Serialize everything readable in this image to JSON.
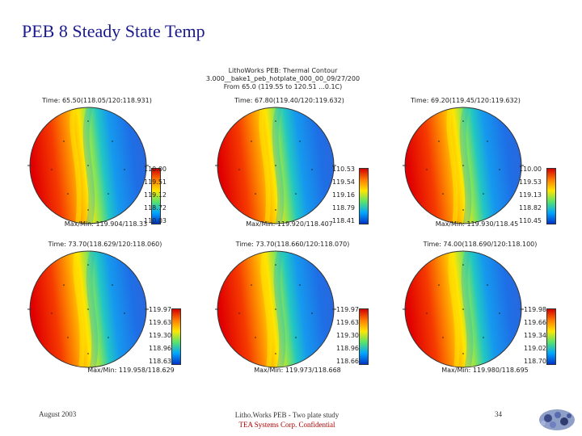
{
  "slide": {
    "title": "PEB 8 Steady State Temp",
    "header_lines": [
      "LithoWorks PEB: Thermal Contour",
      "3.000__bake1_peb_hotplate_000_00_09/27/200",
      "From 65.0 (119.55 to 120.51 ...0.1C)"
    ],
    "footer": {
      "date": "August 2003",
      "center_line1": "Litho.Works PEB - Two plate study",
      "center_line2": "TEA Systems Corp. Confidential",
      "page": "34"
    }
  },
  "colors": {
    "title": "#1a1a8c",
    "confidential": "#b00000",
    "hot": "#e00000",
    "cold": "#1e5fe0"
  },
  "panels": [
    {
      "time": "Time: 65.50(118.05/120:118.931)",
      "ticks": [
        "110.00",
        "119.51",
        "119.12",
        "118.72",
        "110.03"
      ],
      "maxmin": "Max/Min: 119.904/118.33"
    },
    {
      "time": "Time: 67.80(119.40/120:119.632)",
      "ticks": [
        "110.53",
        "119.54",
        "119.16",
        "118.79",
        "118.41"
      ],
      "maxmin": "Max/Min: 119.920/118.407"
    },
    {
      "time": "Time: 69.20(119.45/120:119.632)",
      "ticks": [
        "110.00",
        "119.53",
        "119.13",
        "118.82",
        "110.45"
      ],
      "maxmin": "Max/Min: 119.930/118.45"
    },
    {
      "time": "Time: 73.70(118.629/120:118.060)",
      "ticks": [
        "119.97",
        "119.63",
        "119.30",
        "118.96",
        "118.63"
      ],
      "maxmin": "Max/Min: 119.958/118.629"
    },
    {
      "time": "Time: 73.70(118.660/120:118.070)",
      "ticks": [
        "119.97",
        "119.63",
        "119.30",
        "118.96",
        "118.66"
      ],
      "maxmin": "Max/Min: 119.973/118.668"
    },
    {
      "time": "Time: 74.00(118.690/120:118.100)",
      "ticks": [
        "119.98",
        "119.66",
        "119.34",
        "119.02",
        "118.70"
      ],
      "maxmin": "Max/Min: 119.980/118.695"
    }
  ]
}
